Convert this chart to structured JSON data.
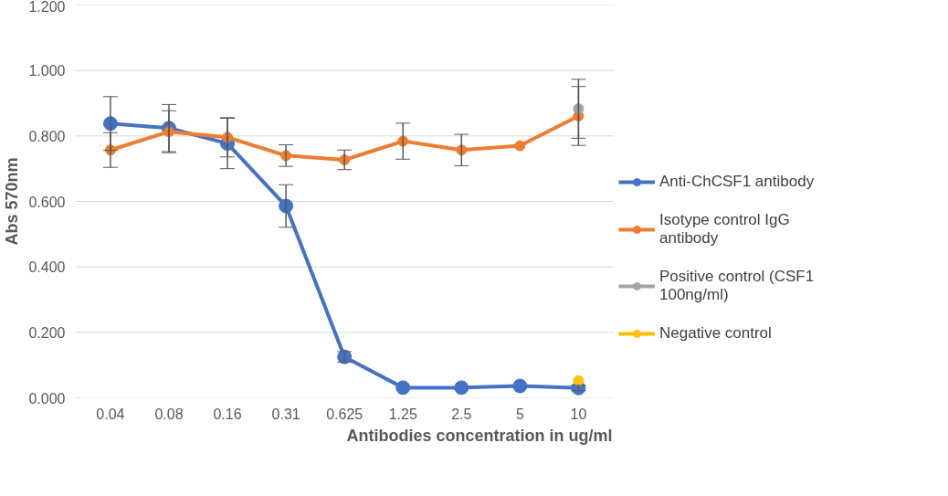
{
  "chart_data": {
    "type": "line",
    "xlabel": "Antibodies concentration in ug/ml",
    "ylabel": "Abs 570nm",
    "categories": [
      "0.04",
      "0.08",
      "0.16",
      "0.31",
      "0.625",
      "1.25",
      "2.5",
      "5",
      "10"
    ],
    "ylim": [
      0,
      1.2
    ],
    "yticks": [
      {
        "value": 0,
        "label": "0.000"
      },
      {
        "value": 0.2,
        "label": "0.200"
      },
      {
        "value": 0.4,
        "label": "0.400"
      },
      {
        "value": 0.6,
        "label": "0.600"
      },
      {
        "value": 0.8,
        "label": "0.800"
      },
      {
        "value": 1.0,
        "label": "1.000"
      },
      {
        "value": 1.2,
        "label": "1.200"
      }
    ],
    "grid": "y",
    "legend": "right",
    "marker": "circle",
    "line_style": "solid",
    "series": [
      {
        "name": "Anti-ChCSF1 antibody",
        "color": "#4472c4",
        "values": [
          0.838,
          0.824,
          0.777,
          0.586,
          0.125,
          0.031,
          0.031,
          0.036,
          0.03
        ],
        "errors": [
          0.082,
          0.072,
          0.077,
          0.065,
          0.016,
          null,
          null,
          null,
          0.008
        ]
      },
      {
        "name": "Isotype control IgG antibody",
        "color": "#ed7d31",
        "values": [
          0.757,
          0.813,
          0.796,
          0.74,
          0.727,
          0.784,
          0.757,
          0.77,
          0.861
        ],
        "errors": [
          0.053,
          0.064,
          0.06,
          0.033,
          0.03,
          0.055,
          0.048,
          null,
          0.09
        ]
      },
      {
        "name": "Positive control (CSF1 100ng/ml)",
        "color": "#a5a5a5",
        "values": [
          null,
          null,
          null,
          null,
          null,
          null,
          null,
          null,
          0.883
        ],
        "errors": [
          null,
          null,
          null,
          null,
          null,
          null,
          null,
          null,
          0.09
        ]
      },
      {
        "name": "Negative control",
        "color": "#ffc000",
        "values": [
          null,
          null,
          null,
          null,
          null,
          null,
          null,
          null,
          0.052
        ]
      }
    ]
  }
}
